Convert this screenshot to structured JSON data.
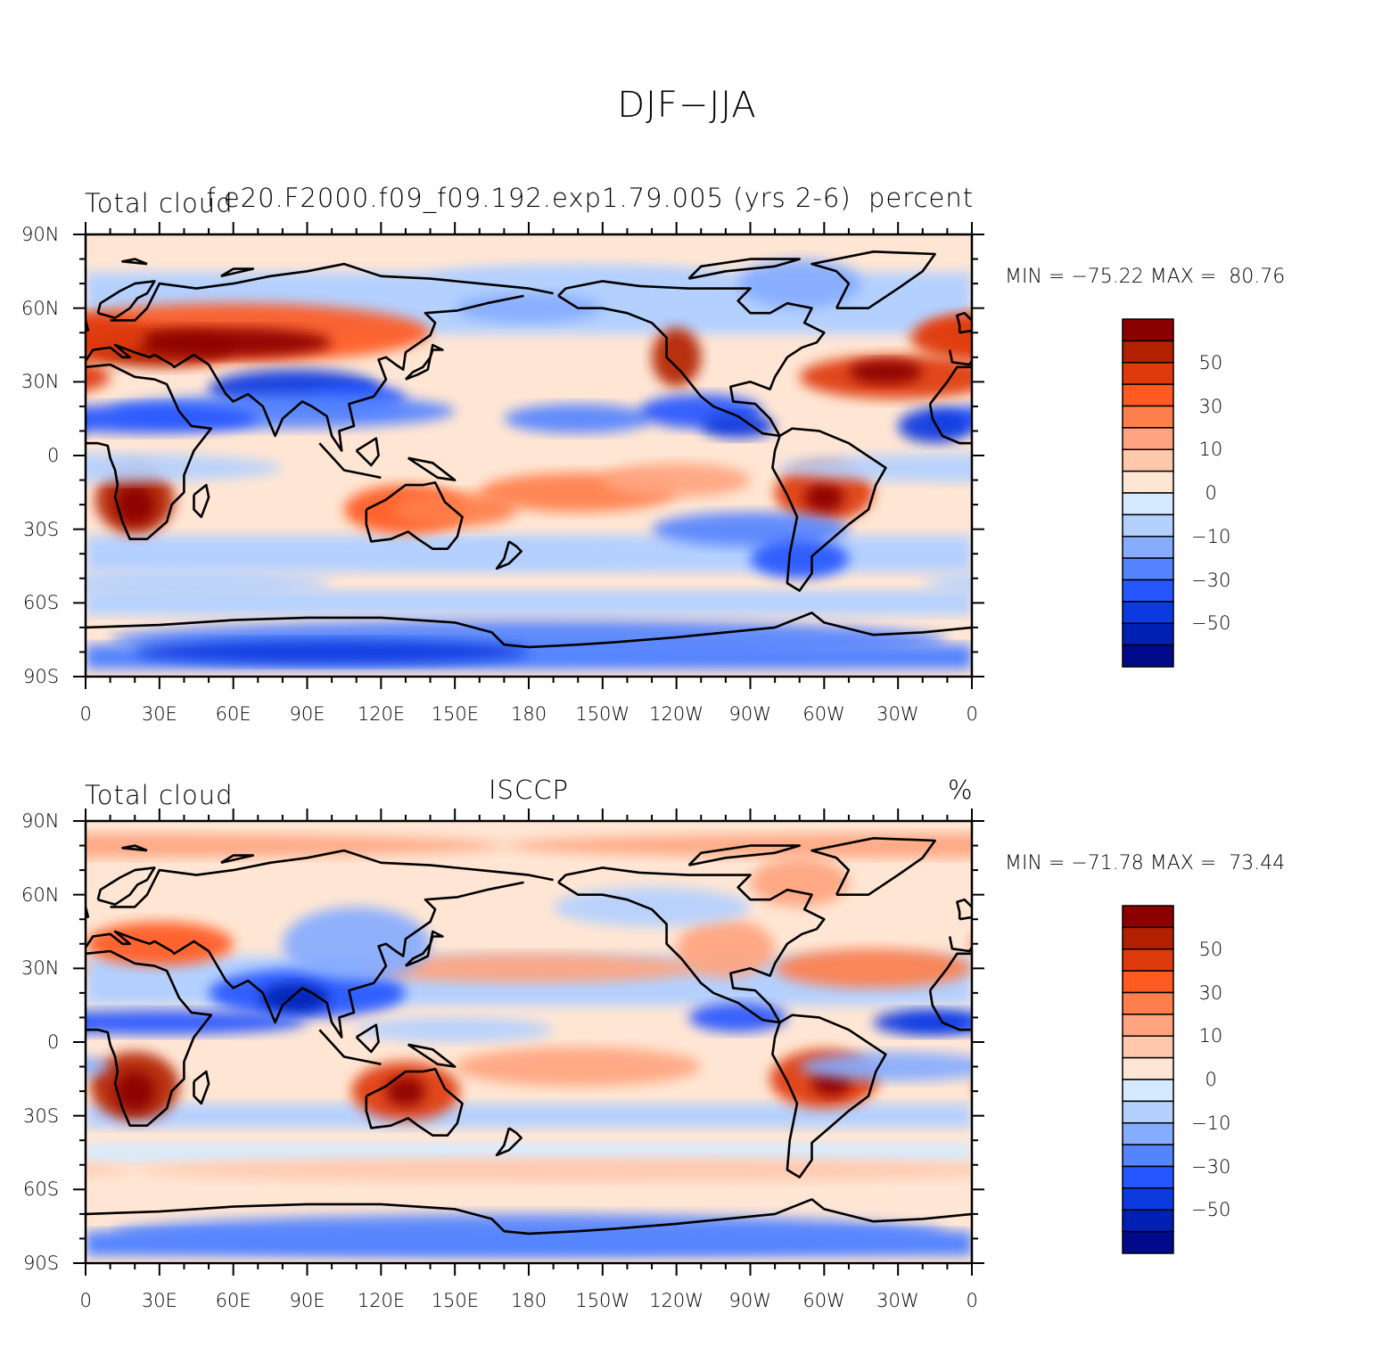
{
  "title": "DJF−JJA",
  "panels": [
    {
      "left_label": "Total cloud",
      "center_label": "f.e20.F2000.f09_f09.192.exp1.79.005 (yrs 2-6)",
      "right_label": "percent",
      "min_max_text": "MIN = −75.22 MAX =  80.76",
      "x_tick_labels": [
        "0",
        "30E",
        "60E",
        "90E",
        "120E",
        "150E",
        "180",
        "150W",
        "120W",
        "90W",
        "60W",
        "30W",
        "0"
      ],
      "y_tick_labels": [
        "90N",
        "60N",
        "30N",
        "0",
        "30S",
        "60S",
        "90S"
      ],
      "colorbar_labels": [
        "50",
        "30",
        "10",
        "0",
        "−10",
        "−30",
        "−50"
      ]
    },
    {
      "left_label": "Total cloud",
      "center_label": "ISCCP",
      "right_label": "%",
      "min_max_text": "MIN = −71.78 MAX =  73.44",
      "x_tick_labels": [
        "0",
        "30E",
        "60E",
        "90E",
        "120E",
        "150E",
        "180",
        "150W",
        "120W",
        "90W",
        "60W",
        "30W",
        "0"
      ],
      "y_tick_labels": [
        "90N",
        "60N",
        "30N",
        "0",
        "30S",
        "60S",
        "90S"
      ],
      "colorbar_labels": [
        "50",
        "30",
        "10",
        "0",
        "−10",
        "−30",
        "−50"
      ]
    }
  ],
  "colorbar_colors": [
    "#8b0000",
    "#b22000",
    "#de3a0c",
    "#ff5a22",
    "#ff7f4c",
    "#ffa47f",
    "#ffc8ad",
    "#ffe6d4",
    "#d6eaff",
    "#b4d0ff",
    "#86acff",
    "#5484ff",
    "#2656ff",
    "#0a3ae0",
    "#0020b4",
    "#000a8a"
  ],
  "palette": {
    "coast_line": "#000000",
    "ocean_light_warm": "#ffe6d4",
    "ocean_light_cool": "#d6eaff"
  }
}
